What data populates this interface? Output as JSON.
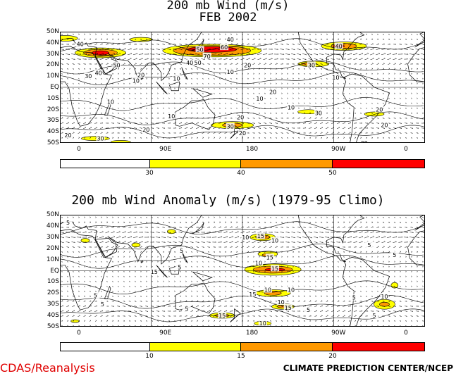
{
  "panel1": {
    "title_line1": "200 mb Wind (m/s)",
    "title_line2": "FEB 2002",
    "lat_labels": [
      "50N",
      "40N",
      "30N",
      "20N",
      "10N",
      "EQ",
      "10S",
      "20S",
      "30S",
      "40S",
      "50S"
    ],
    "lon_labels": [
      "0",
      "90E",
      "180",
      "90W",
      "0"
    ],
    "colorbar": {
      "thresholds": [
        "30",
        "40",
        "50"
      ],
      "colors": [
        "#ffffff",
        "#ffff00",
        "#ff9900",
        "#ff0000"
      ]
    },
    "contour_labels": [
      {
        "text": "40",
        "lon": 168,
        "lat": 43
      },
      {
        "text": "50",
        "lon": 138,
        "lat": 34
      },
      {
        "text": "60",
        "lon": 162,
        "lat": 36
      },
      {
        "text": "70",
        "lon": 145,
        "lat": 28
      },
      {
        "text": "40",
        "lon": 128,
        "lat": 22
      },
      {
        "text": "50",
        "lon": 136,
        "lat": 22
      },
      {
        "text": "40",
        "lon": 20,
        "lat": 39
      },
      {
        "text": "40",
        "lon": 275,
        "lat": 37
      },
      {
        "text": "50",
        "lon": 56,
        "lat": 20
      },
      {
        "text": "40",
        "lon": 38,
        "lat": 13
      },
      {
        "text": "30",
        "lon": 28,
        "lat": 10
      },
      {
        "text": "20",
        "lon": 80,
        "lat": 11
      },
      {
        "text": "10",
        "lon": 75,
        "lat": 6
      },
      {
        "text": "20",
        "lon": 185,
        "lat": 20
      },
      {
        "text": "10",
        "lon": 168,
        "lat": 14
      },
      {
        "text": "10",
        "lon": 115,
        "lat": 8
      },
      {
        "text": "30",
        "lon": 248,
        "lat": 20
      },
      {
        "text": "10",
        "lon": 272,
        "lat": 9
      },
      {
        "text": "20",
        "lon": 210,
        "lat": -4
      },
      {
        "text": "10",
        "lon": 197,
        "lat": -10
      },
      {
        "text": "10",
        "lon": 50,
        "lat": -13
      },
      {
        "text": "10",
        "lon": 228,
        "lat": -18
      },
      {
        "text": "30",
        "lon": 255,
        "lat": -23
      },
      {
        "text": "10",
        "lon": 110,
        "lat": -26
      },
      {
        "text": "20",
        "lon": 178,
        "lat": -27
      },
      {
        "text": "30",
        "lon": 168,
        "lat": -35
      },
      {
        "text": "20",
        "lon": 180,
        "lat": -41
      },
      {
        "text": "20",
        "lon": 85,
        "lat": -38
      },
      {
        "text": "20",
        "lon": 8,
        "lat": -43
      },
      {
        "text": "30",
        "lon": 40,
        "lat": -46
      },
      {
        "text": "20",
        "lon": 315,
        "lat": -20
      },
      {
        "text": "20",
        "lon": 320,
        "lat": -34
      },
      {
        "text": "20",
        "lon": 300,
        "lat": -50
      }
    ]
  },
  "panel2": {
    "title": "200 mb Wind Anomaly (m/s) (1979-95 Climo)",
    "lat_labels": [
      "50N",
      "40N",
      "30N",
      "20N",
      "10N",
      "EQ",
      "10S",
      "20S",
      "30S",
      "40S",
      "50S"
    ],
    "lon_labels": [
      "0",
      "90E",
      "180",
      "90W",
      "0"
    ],
    "colorbar": {
      "thresholds": [
        "10",
        "15",
        "20"
      ],
      "colors": [
        "#ffffff",
        "#ffff00",
        "#ff9900",
        "#ff0000"
      ]
    },
    "contour_labels": [
      {
        "text": "5",
        "lon": 8,
        "lat": 43
      },
      {
        "text": "10",
        "lon": 183,
        "lat": 30
      },
      {
        "text": "15",
        "lon": 198,
        "lat": 31
      },
      {
        "text": "10",
        "lon": 212,
        "lat": 27
      },
      {
        "text": "15",
        "lon": 207,
        "lat": 12
      },
      {
        "text": "10",
        "lon": 196,
        "lat": 7
      },
      {
        "text": "15",
        "lon": 212,
        "lat": 2
      },
      {
        "text": "10",
        "lon": 228,
        "lat": -17
      },
      {
        "text": "10",
        "lon": 205,
        "lat": -17
      },
      {
        "text": "15",
        "lon": 190,
        "lat": -21
      },
      {
        "text": "10",
        "lon": 218,
        "lat": -28
      },
      {
        "text": "15",
        "lon": 225,
        "lat": -33
      },
      {
        "text": "15",
        "lon": 160,
        "lat": -40
      },
      {
        "text": "10",
        "lon": 200,
        "lat": -47
      },
      {
        "text": "10",
        "lon": 320,
        "lat": -23
      },
      {
        "text": "5",
        "lon": 290,
        "lat": -24
      },
      {
        "text": "15",
        "lon": 93,
        "lat": -1
      },
      {
        "text": "5",
        "lon": 120,
        "lat": 18
      },
      {
        "text": "5",
        "lon": 118,
        "lat": 3
      },
      {
        "text": "5",
        "lon": 305,
        "lat": 23
      },
      {
        "text": "5",
        "lon": 330,
        "lat": 14
      },
      {
        "text": "5",
        "lon": 42,
        "lat": -30
      },
      {
        "text": "5",
        "lon": 35,
        "lat": -22
      },
      {
        "text": "5",
        "lon": 125,
        "lat": -34
      },
      {
        "text": "5",
        "lon": 310,
        "lat": -40
      },
      {
        "text": "5",
        "lon": 245,
        "lat": -35
      }
    ]
  },
  "footer": {
    "left": "CDAS/Reanalysis",
    "right": "CLIMATE PREDICTION CENTER/NCEP"
  }
}
